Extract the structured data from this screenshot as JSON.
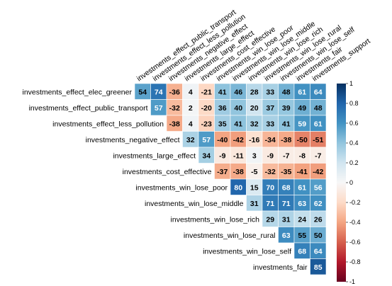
{
  "chart_data": {
    "type": "heatmap",
    "layout": "upper-triangle",
    "title": "",
    "xlabel": "",
    "ylabel": "",
    "colorscale": {
      "min": -1,
      "max": 1,
      "low_color": "#67001f",
      "mid_color": "#f7f7f7",
      "high_color": "#053061",
      "ticks": [
        "1",
        "0.8",
        "0.6",
        "0.4",
        "0.2",
        "0",
        "-0.2",
        "-0.4",
        "-0.6",
        "-0.8",
        "-1"
      ]
    },
    "columns": [
      "investments_effect_public_transport",
      "investments_effect_less_pollution",
      "investments_negative_effect",
      "investments_large_effect",
      "investments_cost_effective",
      "investments_win_lose_poor",
      "investments_win_lose_middle",
      "investments_win_lose_rich",
      "investments_win_lose_rural",
      "investments_win_lose_self",
      "investments_fair",
      "investments_support"
    ],
    "rows": [
      {
        "label": "investments_effect_elec_greener",
        "start": 0,
        "values": [
          54,
          74,
          -36,
          4,
          -21,
          41,
          46,
          28,
          33,
          48,
          61,
          64
        ]
      },
      {
        "label": "investments_effect_public_transport",
        "start": 1,
        "values": [
          57,
          -32,
          2,
          -20,
          36,
          40,
          20,
          37,
          39,
          49,
          48
        ]
      },
      {
        "label": "investments_effect_less_pollution",
        "start": 2,
        "values": [
          -38,
          4,
          -23,
          35,
          41,
          32,
          33,
          41,
          59,
          61
        ]
      },
      {
        "label": "investments_negative_effect",
        "start": 3,
        "values": [
          32,
          57,
          -40,
          -42,
          -16,
          -34,
          -38,
          -50,
          -51
        ]
      },
      {
        "label": "investments_large_effect",
        "start": 4,
        "values": [
          34,
          -9,
          -11,
          3,
          -9,
          -7,
          -8,
          -7
        ]
      },
      {
        "label": "investments_cost_effective",
        "start": 5,
        "values": [
          -37,
          -38,
          -5,
          -32,
          -35,
          -41,
          -42
        ]
      },
      {
        "label": "investments_win_lose_poor",
        "start": 6,
        "values": [
          80,
          15,
          70,
          68,
          61,
          56
        ]
      },
      {
        "label": "investments_win_lose_middle",
        "start": 7,
        "values": [
          31,
          71,
          71,
          63,
          62
        ]
      },
      {
        "label": "investments_win_lose_rich",
        "start": 8,
        "values": [
          29,
          31,
          24,
          26
        ]
      },
      {
        "label": "investments_win_lose_rural",
        "start": 9,
        "values": [
          63,
          55,
          50
        ]
      },
      {
        "label": "investments_win_lose_self",
        "start": 10,
        "values": [
          68,
          64
        ]
      },
      {
        "label": "investments_fair",
        "start": 11,
        "values": [
          85
        ]
      }
    ]
  }
}
